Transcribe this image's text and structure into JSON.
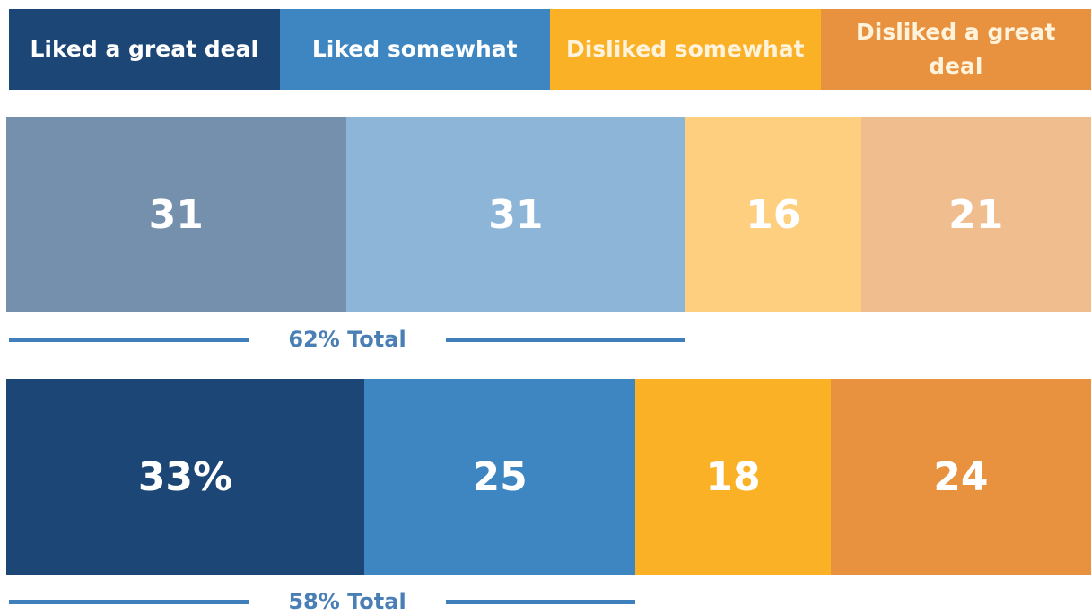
{
  "chart_data": {
    "type": "bar",
    "orientation": "horizontal",
    "stacked": true,
    "series": [
      {
        "name": "Liked a great deal",
        "colors": [
          "#7590ad",
          "#1c4676"
        ],
        "values": [
          31,
          33
        ],
        "value_labels": [
          "31",
          "33%"
        ]
      },
      {
        "name": "Liked somewhat",
        "colors": [
          "#8db5d8",
          "#3e86c1"
        ],
        "values": [
          31,
          25
        ]
      },
      {
        "name": "Disliked somewhat",
        "colors": [
          "#fdcf7f",
          "#fbb126"
        ],
        "values": [
          16,
          18
        ]
      },
      {
        "name": "Disliked a great deal",
        "colors": [
          "#f0bd8e",
          "#e8913f"
        ],
        "values": [
          21,
          24
        ]
      }
    ],
    "annotations": [
      "62% Total",
      "58% Total"
    ]
  }
}
